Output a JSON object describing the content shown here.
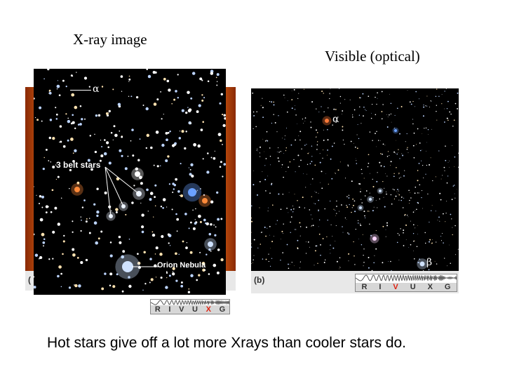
{
  "left_panel": {
    "title": "X-ray image",
    "alpha_label": "α",
    "belt_label": "3 belt stars",
    "nebula_label": "Orion Nebula",
    "corner_label": "(",
    "spectrum": {
      "letters": [
        "R",
        "I",
        "V",
        "U",
        "X",
        "G"
      ],
      "highlight": "X"
    }
  },
  "right_panel": {
    "title": "Visible (optical)",
    "alpha_label": "α",
    "beta_label": "β",
    "corner_label": "(b)",
    "spectrum": {
      "letters": [
        "R",
        "I",
        "V",
        "U",
        "X",
        "G"
      ],
      "highlight": "V"
    }
  },
  "caption": "Hot stars give off a lot more Xrays than cooler stars do."
}
